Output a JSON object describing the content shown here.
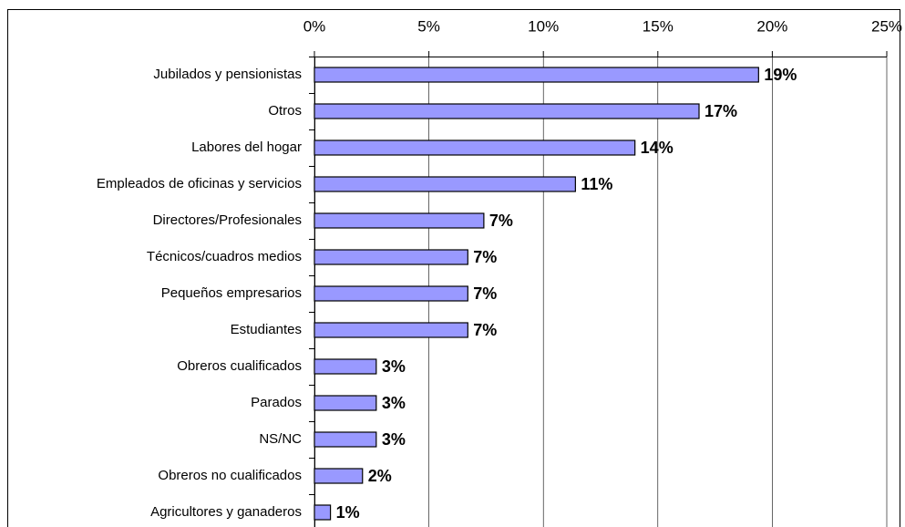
{
  "chart_data": {
    "type": "bar",
    "orientation": "horizontal",
    "categories": [
      "Jubilados y pensionistas",
      "Otros",
      "Labores del hogar",
      "Empleados de oficinas y servicios",
      "Directores/Profesionales",
      "Técnicos/cuadros medios",
      "Pequeños empresarios",
      "Estudiantes",
      "Obreros cualificados",
      "Parados",
      "NS/NC",
      "Obreros no cualificados",
      "Agricultores y ganaderos"
    ],
    "values": [
      19.4,
      16.8,
      14.0,
      11.4,
      7.4,
      6.7,
      6.7,
      6.7,
      2.7,
      2.7,
      2.7,
      2.1,
      0.7
    ],
    "value_labels": [
      "19%",
      "17%",
      "14%",
      "11%",
      "7%",
      "7%",
      "7%",
      "7%",
      "3%",
      "3%",
      "3%",
      "2%",
      "1%"
    ],
    "color": "#9999ff",
    "xlim": [
      0,
      25
    ],
    "xticks": [
      {
        "value": 0,
        "label": "0%"
      },
      {
        "value": 5,
        "label": "5%"
      },
      {
        "value": 10,
        "label": "10%"
      },
      {
        "value": 15,
        "label": "15%"
      },
      {
        "value": 20,
        "label": "20%"
      },
      {
        "value": 25,
        "label": "25%"
      }
    ],
    "grid": true
  }
}
